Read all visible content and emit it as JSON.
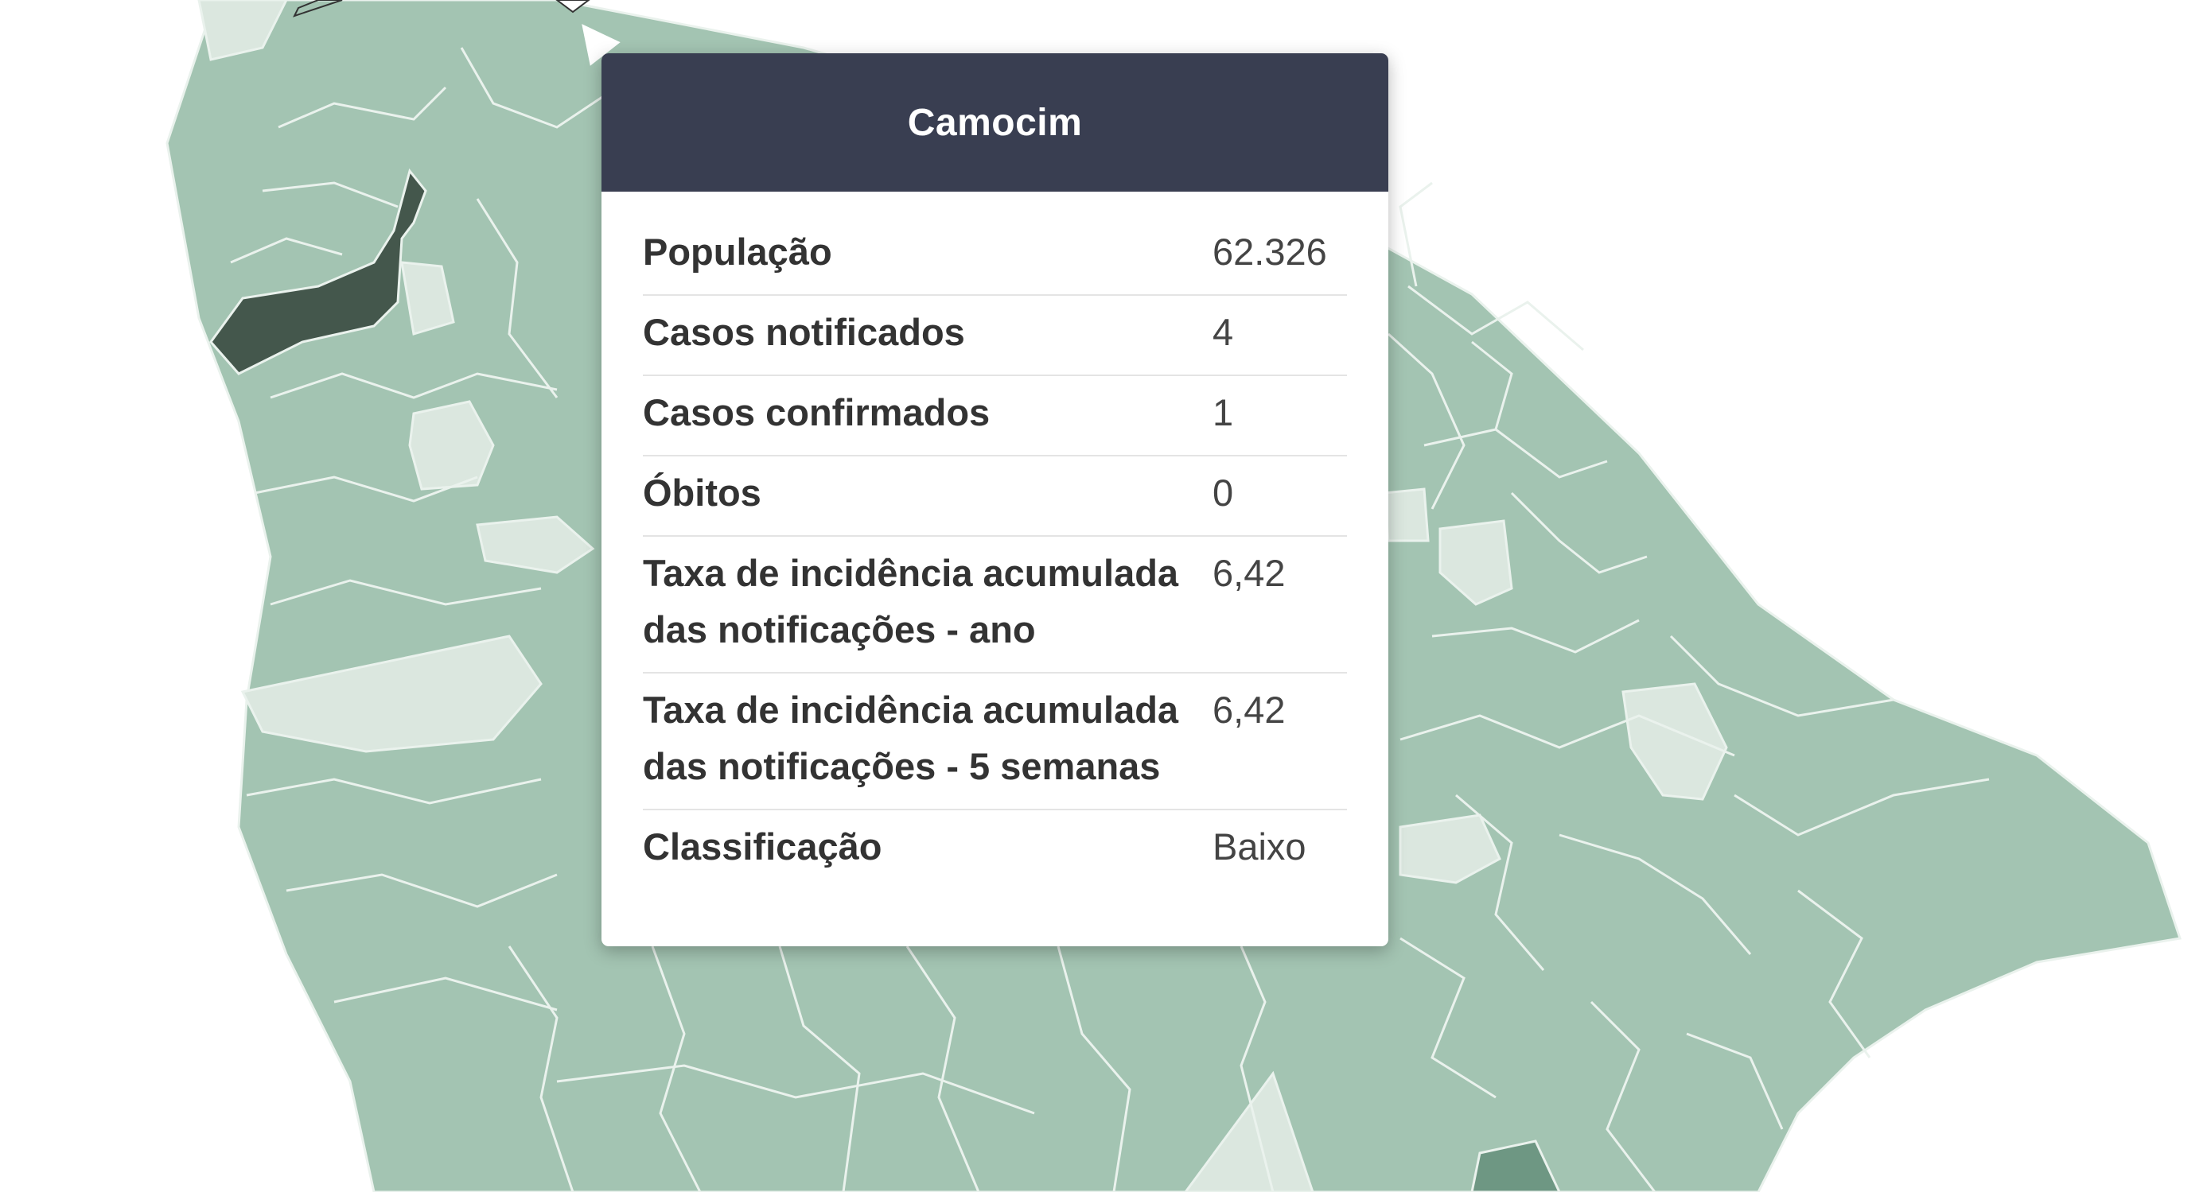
{
  "map": {
    "colors": {
      "background": "#ffffff",
      "base": "#a3c4b2",
      "light": "#dbe7df",
      "dark": "#44574c",
      "medium": "#6e9783",
      "border": "#eaf2ed"
    }
  },
  "tooltip": {
    "title": "Camocim",
    "rows": [
      {
        "label": "População",
        "value": "62.326"
      },
      {
        "label": "Casos notificados",
        "value": "4"
      },
      {
        "label": "Casos confirmados",
        "value": "1"
      },
      {
        "label": "Óbitos",
        "value": "0"
      },
      {
        "label": "Taxa de incidência acumulada das notificações - ano",
        "value": "6,42"
      },
      {
        "label": "Taxa de incidência acumulada das notificações - 5 semanas",
        "value": "6,42"
      },
      {
        "label": "Classificação",
        "value": "Baixo"
      }
    ]
  }
}
